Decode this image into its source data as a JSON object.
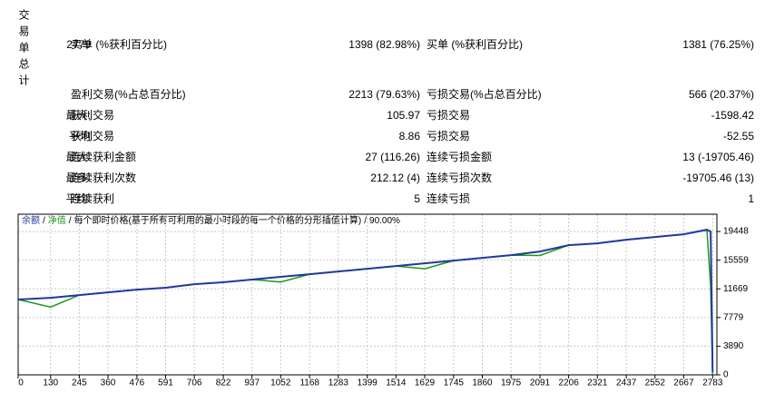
{
  "table": {
    "side_label": "交易单总计",
    "rows": [
      {
        "lead": "2779",
        "cells": [
          "卖单 (%获利百分比)",
          "1398 (82.98%)",
          "买单 (%获利百分比)",
          "1381 (76.25%)"
        ]
      },
      {
        "cells": [
          "盈利交易(%占总百分比)",
          "2213 (79.63%)",
          "亏损交易(%占总百分比)",
          "566 (20.37%)"
        ]
      },
      {
        "lead": "最大:",
        "cells": [
          "获利交易",
          "105.97",
          "亏损交易",
          "-1598.42"
        ]
      },
      {
        "lead": "平均",
        "cells": [
          "获利交易",
          "8.86",
          "亏损交易",
          "-52.55"
        ]
      },
      {
        "lead": "最大:",
        "cells": [
          "连续获利金额",
          "27 (116.26)",
          "连续亏损金额",
          "13 (-19705.46)"
        ]
      },
      {
        "lead": "最多:",
        "cells": [
          "连续获利次数",
          "212.12 (4)",
          "连续亏损次数",
          "-19705.46 (13)"
        ]
      },
      {
        "lead": "平均:",
        "cells": [
          "连续获利",
          "5",
          "连续亏损",
          "1"
        ]
      }
    ]
  },
  "chart_data": {
    "type": "line",
    "legend_separator": "/",
    "description": "每个即时价格(基于所有可利用的最小时段的每一个价格的分形插值计算)",
    "quality": "90.00%",
    "x": [
      0,
      130,
      245,
      360,
      476,
      591,
      706,
      822,
      937,
      1052,
      1168,
      1283,
      1399,
      1514,
      1629,
      1745,
      1860,
      1975,
      2091,
      2206,
      2321,
      2437,
      2552,
      2667,
      2760,
      2775,
      2783
    ],
    "series": [
      {
        "name": "余额",
        "color": "#1f3a9e",
        "values": [
          10220,
          10460,
          10830,
          11200,
          11570,
          11820,
          12310,
          12560,
          12930,
          13300,
          13660,
          14030,
          14400,
          14770,
          15140,
          15510,
          15880,
          16250,
          16740,
          17600,
          17850,
          18340,
          18710,
          19080,
          19700,
          19450,
          370
        ]
      },
      {
        "name": "净值",
        "color": "#1a9a1a",
        "values": [
          10220,
          9200,
          10830,
          11200,
          11570,
          11820,
          12310,
          12560,
          12930,
          12600,
          13660,
          14030,
          14400,
          14770,
          14400,
          15510,
          15880,
          16250,
          16200,
          17600,
          17850,
          18340,
          18710,
          19080,
          19700,
          12000,
          0
        ]
      }
    ],
    "xlim": [
      0,
      2800
    ],
    "xticks": [
      0,
      130,
      245,
      360,
      476,
      591,
      706,
      822,
      937,
      1052,
      1168,
      1283,
      1399,
      1514,
      1629,
      1745,
      1860,
      1975,
      2091,
      2206,
      2321,
      2437,
      2552,
      2667,
      2783
    ],
    "ylim": [
      0,
      21800
    ],
    "yticks": [
      0,
      3890,
      7779,
      11669,
      15559,
      19448
    ],
    "grid": true
  }
}
